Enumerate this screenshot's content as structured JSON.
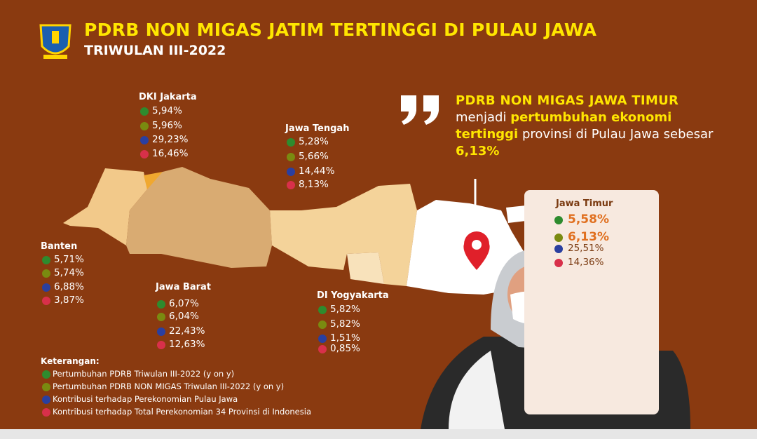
{
  "header": {
    "title": "PDRB NON MIGAS JATIM TERTINGGI DI PULAU JAWA",
    "subtitle": "TRIWULAN III-2022"
  },
  "quote": {
    "title": "PDRB NON MIGAS JAWA TIMUR",
    "text_1": "menjadi",
    "highlight_1": "pertumbuhan ekonomi tertinggi",
    "text_2": "provinsi di Pulau Jawa sebesar",
    "highlight_2": "6,13%"
  },
  "provinces": [
    {
      "name": "DKI Jakarta",
      "values": [
        "5,94%",
        "5,96%",
        "29,23%",
        "16,46%"
      ]
    },
    {
      "name": "Jawa Tengah",
      "values": [
        "5,28%",
        "5,66%",
        "14,44%",
        "8,13%"
      ]
    },
    {
      "name": "Banten",
      "values": [
        "5,71%",
        "5,74%",
        "6,88%",
        "3,87%"
      ]
    },
    {
      "name": "Jawa Barat",
      "values": [
        "6,07%",
        "6,04%",
        "22,43%",
        "12,63%"
      ]
    },
    {
      "name": "DI Yogyakarta",
      "values": [
        "5,82%",
        "5,82%",
        "1,51%",
        "0,85%"
      ]
    },
    {
      "name": "Jawa Timur",
      "values": [
        "5,58%",
        "6,13%",
        "25,51%",
        "14,36%"
      ]
    }
  ],
  "legend": {
    "title": "Keterangan:",
    "items": [
      "Pertumbuhan PDRB Triwulan III-2022 (y on y)",
      "Pertumbuhan PDRB NON MIGAS Triwulan III-2022 (y on y)",
      "Kontribusi terhadap Perekonomian Pulau Jawa",
      "Kontribusi terhadap Total Perekonomian 34 Provinsi di Indonesia"
    ]
  }
}
